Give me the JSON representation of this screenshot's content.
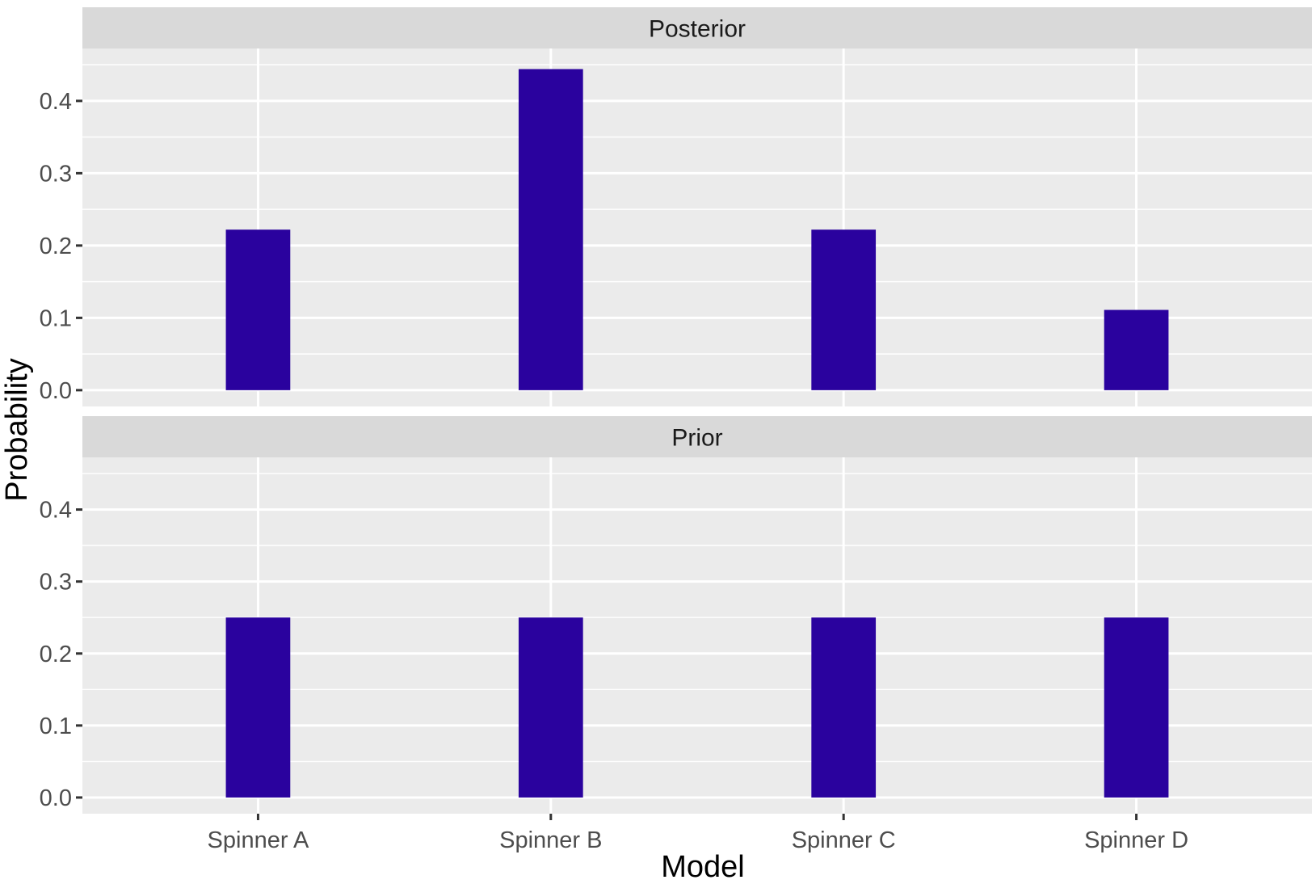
{
  "chart_data": {
    "type": "bar",
    "xlabel": "Model",
    "ylabel": "Probability",
    "categories": [
      "Spinner A",
      "Spinner B",
      "Spinner C",
      "Spinner D"
    ],
    "ylim": [
      -0.0225,
      0.4725
    ],
    "yticks": [
      0.0,
      0.1,
      0.2,
      0.3,
      0.4
    ],
    "ytick_labels": [
      "0.0",
      "0.1",
      "0.2",
      "0.3",
      "0.4"
    ],
    "grid": true,
    "bar_color": "#2a029e",
    "facets": [
      {
        "label": "Posterior",
        "values": [
          0.222,
          0.444,
          0.222,
          0.111
        ]
      },
      {
        "label": "Prior",
        "values": [
          0.25,
          0.25,
          0.25,
          0.25
        ]
      }
    ]
  }
}
